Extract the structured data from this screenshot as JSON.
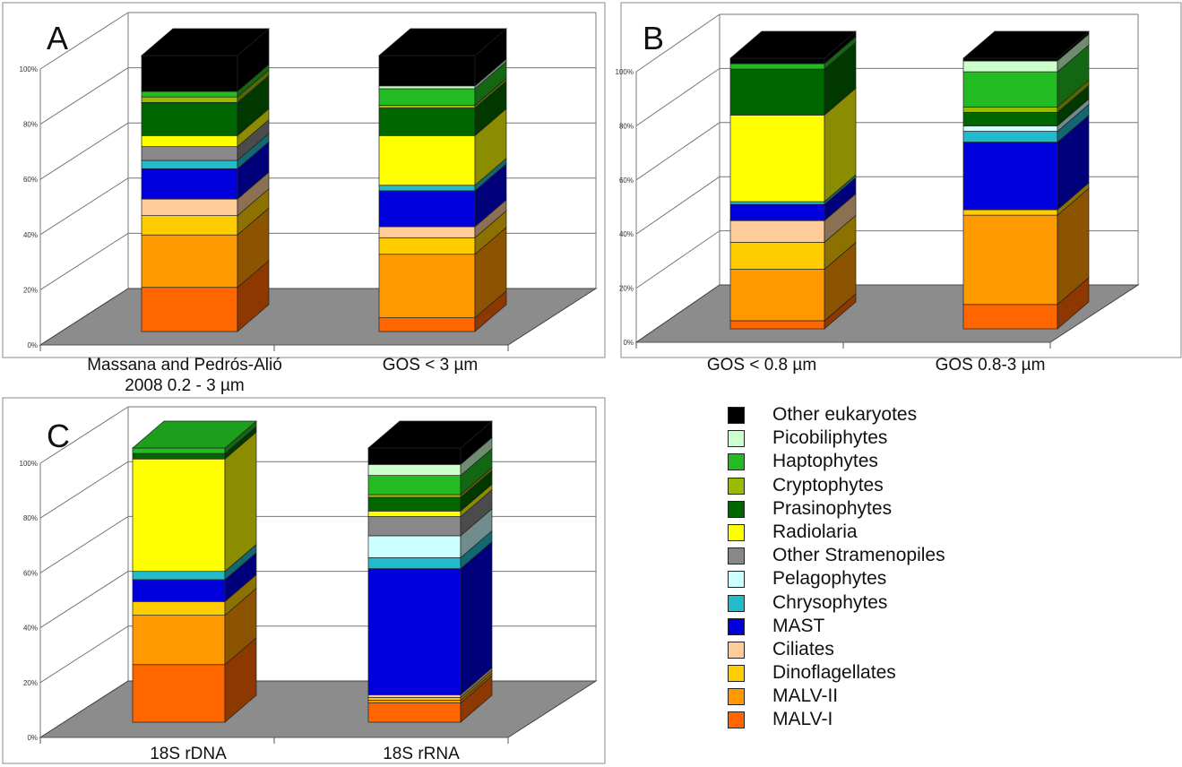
{
  "colors": {
    "Other eukaryotes": "#000000",
    "Picobiliphytes": "#ccffcc",
    "Haptophytes": "#22bb22",
    "Cryptophytes": "#99bb00",
    "Prasinophytes": "#006600",
    "Radiolaria": "#ffff00",
    "Other Stramenopiles": "#888888",
    "Pelagophytes": "#ccffff",
    "Chrysophytes": "#22bbcc",
    "MAST": "#0000dd",
    "Ciliates": "#ffcc99",
    "Dinoflagellates": "#ffcc00",
    "MALV-II": "#ff9900",
    "MALV-I": "#ff6600"
  },
  "legend": {
    "items": [
      "Other eukaryotes",
      "Picobiliphytes",
      "Haptophytes",
      "Cryptophytes",
      "Prasinophytes",
      "Radiolaria",
      "Other Stramenopiles",
      "Pelagophytes",
      "Chrysophytes",
      "MAST",
      "Ciliates",
      "Dinoflagellates",
      "MALV-II",
      "MALV-I"
    ]
  },
  "chart_data": [
    {
      "type": "bar",
      "stacked": true,
      "panel": "A",
      "yticks": [
        "0%",
        "20%",
        "40%",
        "60%",
        "80%",
        "100%"
      ],
      "ylim": [
        0,
        100
      ],
      "categories": [
        "Massana and Pedrós-Alió\n2008  0.2 - 3 µm",
        "GOS  < 3 µm"
      ],
      "series": [
        {
          "name": "MALV-I",
          "values": [
            16,
            5
          ]
        },
        {
          "name": "MALV-II",
          "values": [
            19,
            23
          ]
        },
        {
          "name": "Dinoflagellates",
          "values": [
            7,
            6
          ]
        },
        {
          "name": "Ciliates",
          "values": [
            6,
            4
          ]
        },
        {
          "name": "MAST",
          "values": [
            11,
            13
          ]
        },
        {
          "name": "Chrysophytes",
          "values": [
            3,
            2
          ]
        },
        {
          "name": "Pelagophytes",
          "values": [
            0,
            0
          ]
        },
        {
          "name": "Other Stramenopiles",
          "values": [
            5,
            0
          ]
        },
        {
          "name": "Radiolaria",
          "values": [
            4,
            18
          ]
        },
        {
          "name": "Prasinophytes",
          "values": [
            12,
            10
          ]
        },
        {
          "name": "Cryptophytes",
          "values": [
            2,
            1
          ]
        },
        {
          "name": "Haptophytes",
          "values": [
            2,
            6
          ]
        },
        {
          "name": "Picobiliphytes",
          "values": [
            0,
            1
          ]
        },
        {
          "name": "Other eukaryotes",
          "values": [
            13,
            11
          ]
        }
      ]
    },
    {
      "type": "bar",
      "stacked": true,
      "panel": "B",
      "yticks": [
        "0%",
        "20%",
        "40%",
        "60%",
        "80%",
        "100%"
      ],
      "ylim": [
        0,
        100
      ],
      "categories": [
        "GOS < 0.8 µm",
        "GOS 0.8-3 µm"
      ],
      "series": [
        {
          "name": "MALV-I",
          "values": [
            3,
            9
          ]
        },
        {
          "name": "MALV-II",
          "values": [
            19,
            33
          ]
        },
        {
          "name": "Dinoflagellates",
          "values": [
            10,
            2
          ]
        },
        {
          "name": "Ciliates",
          "values": [
            8,
            0
          ]
        },
        {
          "name": "MAST",
          "values": [
            6,
            25
          ]
        },
        {
          "name": "Chrysophytes",
          "values": [
            1,
            4
          ]
        },
        {
          "name": "Pelagophytes",
          "values": [
            0,
            2
          ]
        },
        {
          "name": "Other Stramenopiles",
          "values": [
            0,
            0
          ]
        },
        {
          "name": "Radiolaria",
          "values": [
            32,
            0
          ]
        },
        {
          "name": "Prasinophytes",
          "values": [
            17,
            5
          ]
        },
        {
          "name": "Cryptophytes",
          "values": [
            0,
            2
          ]
        },
        {
          "name": "Haptophytes",
          "values": [
            2,
            13
          ]
        },
        {
          "name": "Picobiliphytes",
          "values": [
            0,
            4
          ]
        },
        {
          "name": "Other eukaryotes",
          "values": [
            2,
            1
          ]
        }
      ]
    },
    {
      "type": "bar",
      "stacked": true,
      "panel": "C",
      "yticks": [
        "0%",
        "20%",
        "40%",
        "60%",
        "80%",
        "100%"
      ],
      "ylim": [
        0,
        100
      ],
      "categories": [
        "18S rDNA",
        "18S rRNA"
      ],
      "series": [
        {
          "name": "MALV-I",
          "values": [
            21,
            7
          ]
        },
        {
          "name": "MALV-II",
          "values": [
            18,
            1
          ]
        },
        {
          "name": "Dinoflagellates",
          "values": [
            5,
            1
          ]
        },
        {
          "name": "Ciliates",
          "values": [
            0,
            1
          ]
        },
        {
          "name": "MAST",
          "values": [
            8,
            46
          ]
        },
        {
          "name": "Chrysophytes",
          "values": [
            3,
            4
          ]
        },
        {
          "name": "Pelagophytes",
          "values": [
            0,
            8
          ]
        },
        {
          "name": "Other Stramenopiles",
          "values": [
            0,
            7
          ]
        },
        {
          "name": "Radiolaria",
          "values": [
            41,
            2
          ]
        },
        {
          "name": "Prasinophytes",
          "values": [
            2,
            5
          ]
        },
        {
          "name": "Cryptophytes",
          "values": [
            0,
            1
          ]
        },
        {
          "name": "Haptophytes",
          "values": [
            2,
            7
          ]
        },
        {
          "name": "Picobiliphytes",
          "values": [
            0,
            4
          ]
        },
        {
          "name": "Other eukaryotes",
          "values": [
            0,
            6
          ]
        }
      ]
    }
  ]
}
